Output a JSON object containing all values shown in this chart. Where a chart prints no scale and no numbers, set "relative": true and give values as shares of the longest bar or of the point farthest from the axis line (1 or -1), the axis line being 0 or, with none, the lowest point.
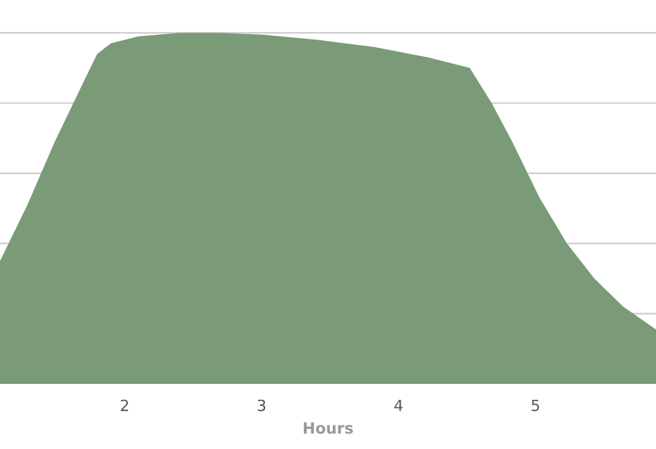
{
  "chart_data": {
    "type": "area",
    "xlabel": "Hours",
    "relative": true,
    "grid": "y",
    "legend": false,
    "xlim": [
      1.09,
      5.88
    ],
    "xticks": [
      2,
      3,
      4,
      5
    ],
    "series": [
      {
        "color": "#7a9a78",
        "x": [
          1.09,
          1.29,
          1.49,
          1.7,
          1.8,
          1.9,
          2.1,
          2.4,
          2.7,
          3.01,
          3.41,
          3.82,
          4.22,
          4.52,
          4.68,
          4.83,
          5.03,
          5.23,
          5.43,
          5.64,
          5.88
        ],
        "values": [
          0.35,
          0.51,
          0.69,
          0.86,
          0.94,
          0.97,
          0.99,
          1.0,
          1.0,
          0.995,
          0.98,
          0.96,
          0.93,
          0.9,
          0.8,
          0.69,
          0.53,
          0.4,
          0.3,
          0.22,
          0.155
        ]
      }
    ]
  }
}
